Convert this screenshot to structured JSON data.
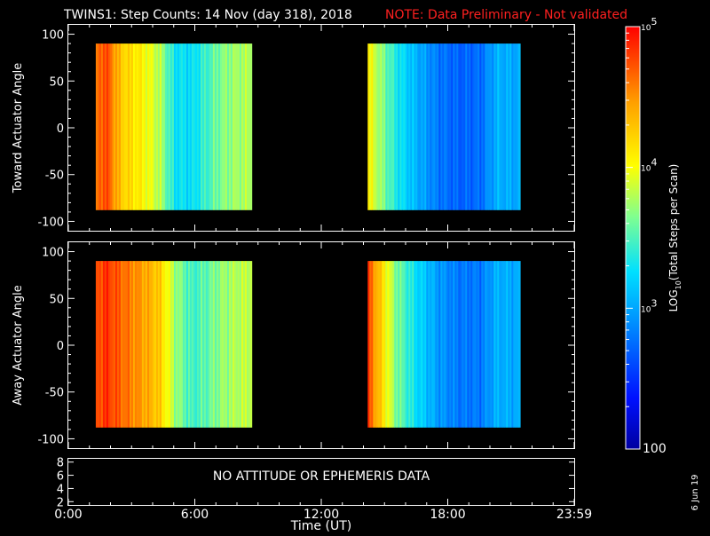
{
  "title": "TWINS1: Step Counts: 14 Nov (day 318), 2018",
  "note": "NOTE: Data Preliminary - Not validated",
  "date_stamp": "6 Jun 19",
  "colors": {
    "background": "#000000",
    "axes": "#ffffff",
    "note": "#ff0000"
  },
  "chart_data": [
    {
      "type": "heatmap",
      "name": "toward",
      "ylabel": "Toward Actuator Angle",
      "ylim": [
        -110,
        110
      ],
      "yticks": [
        100,
        50,
        0,
        -50,
        -100
      ],
      "xlim": [
        0,
        24
      ],
      "blocks": [
        {
          "x_start": 1.3,
          "x_end": 8.7,
          "y_start": -88,
          "y_end": 90
        },
        {
          "x_start": 14.2,
          "x_end": 21.4,
          "y_start": -88,
          "y_end": 90
        }
      ],
      "profile": [
        {
          "t": 1.3,
          "log": 4.55
        },
        {
          "t": 1.7,
          "log": 4.8
        },
        {
          "t": 2.5,
          "log": 4.25
        },
        {
          "t": 3.5,
          "log": 4.05
        },
        {
          "t": 4.3,
          "log": 3.8
        },
        {
          "t": 5.0,
          "log": 3.3
        },
        {
          "t": 5.8,
          "log": 3.25
        },
        {
          "t": 6.5,
          "log": 3.45
        },
        {
          "t": 7.2,
          "log": 3.65
        },
        {
          "t": 8.0,
          "log": 3.75
        },
        {
          "t": 8.7,
          "log": 3.8
        },
        {
          "t": 14.2,
          "log": 4.05
        },
        {
          "t": 14.7,
          "log": 3.75
        },
        {
          "t": 15.5,
          "log": 3.35
        },
        {
          "t": 16.5,
          "log": 3.05
        },
        {
          "t": 17.5,
          "log": 2.8
        },
        {
          "t": 18.5,
          "log": 2.7
        },
        {
          "t": 19.5,
          "log": 2.75
        },
        {
          "t": 20.3,
          "log": 3.05
        },
        {
          "t": 21.4,
          "log": 3.0
        }
      ]
    },
    {
      "type": "heatmap",
      "name": "away",
      "ylabel": "Away Actuator Angle",
      "ylim": [
        -110,
        110
      ],
      "yticks": [
        100,
        50,
        0,
        -50,
        -100
      ],
      "xlim": [
        0,
        24
      ],
      "blocks": [
        {
          "x_start": 1.3,
          "x_end": 8.7,
          "y_start": -88,
          "y_end": 90
        },
        {
          "x_start": 14.2,
          "x_end": 21.4,
          "y_start": -88,
          "y_end": 90
        }
      ],
      "profile": [
        {
          "t": 1.3,
          "log": 4.7
        },
        {
          "t": 1.7,
          "log": 4.85
        },
        {
          "t": 2.5,
          "log": 4.65
        },
        {
          "t": 3.5,
          "log": 4.45
        },
        {
          "t": 4.3,
          "log": 4.25
        },
        {
          "t": 5.0,
          "log": 3.75
        },
        {
          "t": 5.8,
          "log": 3.45
        },
        {
          "t": 6.5,
          "log": 3.55
        },
        {
          "t": 7.2,
          "log": 3.7
        },
        {
          "t": 8.0,
          "log": 3.8
        },
        {
          "t": 8.7,
          "log": 3.85
        },
        {
          "t": 14.2,
          "log": 4.75
        },
        {
          "t": 14.7,
          "log": 4.3
        },
        {
          "t": 15.5,
          "log": 3.65
        },
        {
          "t": 16.5,
          "log": 3.25
        },
        {
          "t": 17.5,
          "log": 2.95
        },
        {
          "t": 18.5,
          "log": 2.8
        },
        {
          "t": 19.5,
          "log": 2.8
        },
        {
          "t": 20.3,
          "log": 3.05
        },
        {
          "t": 21.4,
          "log": 3.0
        }
      ]
    },
    {
      "type": "line",
      "name": "ephemeris",
      "ylim": [
        1.5,
        8.5
      ],
      "yticks": [
        8,
        6,
        4,
        2
      ],
      "message": "NO ATTITUDE OR EPHEMERIS DATA",
      "xlim": [
        0,
        24
      ],
      "xticks": [
        0,
        6,
        12,
        18,
        24
      ],
      "xticklabels": [
        "0:00",
        "6:00",
        "12:00",
        "18:00",
        "23:59"
      ],
      "xlabel": "Time (UT)"
    }
  ],
  "colorbar": {
    "label": "LOG10(Total Steps per Scan)",
    "label_main": "LOG",
    "label_sub": "10",
    "label_rest": "(Total Steps per Scan)",
    "range_log": [
      2,
      5
    ],
    "ticks": [
      {
        "log": 5,
        "base": "10",
        "exp": "5"
      },
      {
        "log": 4,
        "base": "10",
        "exp": "4"
      },
      {
        "log": 3,
        "base": "10",
        "exp": "3"
      }
    ],
    "bottom_label": "100"
  }
}
